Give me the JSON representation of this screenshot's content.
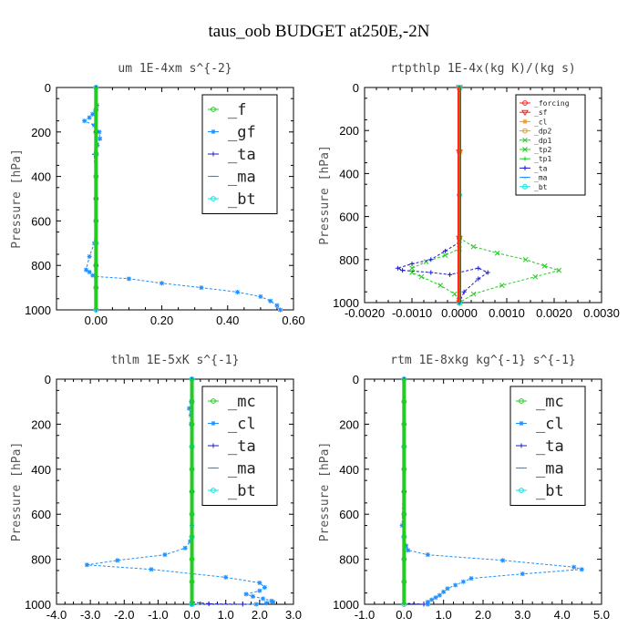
{
  "suptitle": "taus_oob  BUDGET at250E,-2N",
  "colors": {
    "green": "#22cc22",
    "blue": "#1e90ff",
    "navy": "#1a1ac8",
    "cyan": "#00e6e6",
    "red": "#ff1a1a",
    "orange": "#ff9900",
    "lightgreen": "#66dd66"
  },
  "chart_data": [
    {
      "type": "line",
      "title": "um  1E-4xm s^{-2}",
      "ylabel": "Pressure [hPa]",
      "xlim": [
        -0.12,
        0.6
      ],
      "ylim": [
        1000,
        0
      ],
      "xticks": [
        "0.00",
        "0.20",
        "0.40",
        "0.60"
      ],
      "xtick_values": [
        0.0,
        0.2,
        0.4,
        0.6
      ],
      "yticks": [
        "0",
        "200",
        "400",
        "600",
        "800",
        "1000"
      ],
      "legend_size": "large",
      "series": [
        {
          "name": "_f",
          "color": "green",
          "marker": "o",
          "x": [
            0,
            0,
            0,
            0,
            0,
            0,
            0,
            0,
            0,
            0,
            0
          ],
          "y": [
            0,
            100,
            200,
            300,
            400,
            500,
            600,
            700,
            800,
            900,
            1000
          ]
        },
        {
          "name": "_gf",
          "color": "blue",
          "marker": "*",
          "x": [
            0,
            0.003,
            -0.01,
            -0.02,
            -0.035,
            -0.005,
            0.01,
            0.012,
            0.004,
            0.002,
            0.0,
            0.0,
            0.0,
            -0.005,
            -0.02,
            -0.03,
            -0.02,
            -0.01,
            0.0,
            0.1,
            0.2,
            0.32,
            0.43,
            0.5,
            0.53,
            0.55,
            0.56
          ],
          "y": [
            0,
            80,
            120,
            135,
            150,
            170,
            200,
            230,
            260,
            300,
            400,
            500,
            600,
            700,
            760,
            820,
            830,
            845,
            850,
            860,
            880,
            900,
            920,
            940,
            960,
            980,
            1000
          ]
        },
        {
          "name": "_ta",
          "color": "navy",
          "marker": "+",
          "x": [
            0,
            0.0,
            -0.005,
            0.0,
            0.0,
            0.0
          ],
          "y": [
            0,
            200,
            300,
            500,
            800,
            1000
          ]
        },
        {
          "name": "_ma",
          "color": "blue",
          "marker": "-",
          "x": [
            0,
            0,
            0,
            0
          ],
          "y": [
            0,
            300,
            700,
            1000
          ]
        },
        {
          "name": "_bt",
          "color": "cyan",
          "marker": "o",
          "x": [
            0,
            0,
            0,
            0
          ],
          "y": [
            0,
            300,
            700,
            1000
          ]
        }
      ]
    },
    {
      "type": "line",
      "title": "rtpthlp  1E-4x(kg K)/(kg s)",
      "ylabel": "Pressure [hPa]",
      "xlim": [
        -0.002,
        0.003
      ],
      "ylim": [
        1000,
        0
      ],
      "xticks": [
        "-0.0020",
        "-0.0010",
        "0.0000",
        "0.0010",
        "0.0020",
        "0.0030"
      ],
      "xtick_values": [
        -0.002,
        -0.001,
        0.0,
        0.001,
        0.002,
        0.003
      ],
      "yticks": [
        "0",
        "200",
        "400",
        "600",
        "800",
        "1000"
      ],
      "legend_size": "small",
      "series": [
        {
          "name": "_forcing",
          "color": "red",
          "marker": "o",
          "x": [
            0,
            0,
            0,
            0
          ],
          "y": [
            0,
            300,
            700,
            1000
          ]
        },
        {
          "name": "_sf",
          "color": "red",
          "marker": "v",
          "x": [
            0,
            0,
            0,
            0
          ],
          "y": [
            0,
            300,
            700,
            1000
          ]
        },
        {
          "name": "_cl",
          "color": "orange",
          "marker": "*",
          "x": [
            0,
            0,
            0,
            0
          ],
          "y": [
            0,
            300,
            700,
            1000
          ]
        },
        {
          "name": "_dp2",
          "color": "orange",
          "marker": "o",
          "x": [
            0,
            0,
            0,
            0
          ],
          "y": [
            0,
            300,
            700,
            1000
          ]
        },
        {
          "name": "_dp1",
          "color": "green",
          "marker": "x",
          "x": [
            0,
            0,
            0.0003,
            0.0008,
            0.0014,
            0.0018,
            0.0021,
            0.0016,
            0.0009,
            0.0003,
            0.0
          ],
          "y": [
            0,
            700,
            740,
            770,
            800,
            830,
            850,
            880,
            920,
            960,
            1000
          ]
        },
        {
          "name": "_tp2",
          "color": "green",
          "marker": "x",
          "x": [
            0,
            0,
            -0.0003,
            -0.0007,
            -0.001,
            -0.001,
            -0.0008,
            -0.0004,
            -0.0001,
            0.0
          ],
          "y": [
            0,
            750,
            780,
            810,
            840,
            860,
            880,
            920,
            960,
            1000
          ]
        },
        {
          "name": "_tp1",
          "color": "green",
          "marker": "+",
          "x": [
            0,
            0,
            0.0
          ],
          "y": [
            0,
            500,
            1000
          ]
        },
        {
          "name": "_ta",
          "color": "navy",
          "marker": "+",
          "x": [
            0,
            0,
            0.0,
            -0.0003,
            -0.0006,
            -0.001,
            -0.0013,
            -0.0012,
            -0.0006,
            -0.0002,
            0.0004,
            0.0006,
            0.0004,
            0.0001,
            0.0
          ],
          "y": [
            0,
            700,
            720,
            760,
            800,
            820,
            840,
            850,
            860,
            870,
            840,
            860,
            890,
            950,
            1000
          ]
        },
        {
          "name": "_ma",
          "color": "blue",
          "marker": "-",
          "x": [
            0,
            0,
            0.0
          ],
          "y": [
            0,
            500,
            1000
          ]
        },
        {
          "name": "_bt",
          "color": "cyan",
          "marker": "o",
          "x": [
            0,
            0,
            0.0
          ],
          "y": [
            0,
            500,
            1000
          ]
        }
      ]
    },
    {
      "type": "line",
      "title": "thlm  1E-5xK s^{-1}",
      "ylabel": "Pressure [hPa]",
      "xlim": [
        -4.0,
        3.0
      ],
      "ylim": [
        1000,
        0
      ],
      "xticks": [
        "-4.0",
        "-3.0",
        "-2.0",
        "-1.0",
        "0.0",
        "1.0",
        "2.0",
        "3.0"
      ],
      "xtick_values": [
        -4.0,
        -3.0,
        -2.0,
        -1.0,
        0.0,
        1.0,
        2.0,
        3.0
      ],
      "yticks": [
        "0",
        "200",
        "400",
        "600",
        "800",
        "1000"
      ],
      "legend_size": "large",
      "series": [
        {
          "name": "_mc",
          "color": "green",
          "marker": "o",
          "x": [
            0,
            0,
            0,
            0,
            0,
            0,
            0,
            0,
            0,
            0,
            0
          ],
          "y": [
            0,
            100,
            200,
            300,
            400,
            500,
            600,
            700,
            800,
            900,
            1000
          ]
        },
        {
          "name": "_cl",
          "color": "blue",
          "marker": "*",
          "x": [
            0,
            -0.02,
            -0.08,
            -0.03,
            -0.02,
            0.0,
            0.0,
            0.0,
            -0.05,
            -0.2,
            -0.8,
            -2.2,
            -3.1,
            -1.2,
            1.0,
            2.0,
            2.15,
            2.0,
            1.6,
            1.8,
            2.1,
            2.35,
            2.4,
            2.2,
            1.9,
            0.0
          ],
          "y": [
            0,
            100,
            130,
            160,
            200,
            300,
            500,
            650,
            720,
            750,
            780,
            805,
            825,
            845,
            880,
            905,
            925,
            940,
            955,
            965,
            975,
            985,
            990,
            995,
            1000,
            1000
          ]
        },
        {
          "name": "_ta",
          "color": "navy",
          "marker": "+",
          "x": [
            0,
            0,
            0,
            0.5,
            1.5
          ],
          "y": [
            0,
            500,
            990,
            998,
            1000
          ]
        },
        {
          "name": "_ma",
          "color": "blue",
          "marker": "-",
          "x": [
            0,
            0,
            0,
            0
          ],
          "y": [
            0,
            300,
            700,
            1000
          ]
        },
        {
          "name": "_bt",
          "color": "cyan",
          "marker": "o",
          "x": [
            0,
            0,
            0,
            0
          ],
          "y": [
            0,
            300,
            700,
            1000
          ]
        }
      ]
    },
    {
      "type": "line",
      "title": "rtm  1E-8xkg kg^{-1} s^{-1}",
      "ylabel": "Pressure [hPa]",
      "xlim": [
        -1.0,
        5.0
      ],
      "ylim": [
        1000,
        0
      ],
      "xticks": [
        "-1.0",
        "0.0",
        "1.0",
        "2.0",
        "3.0",
        "4.0",
        "5.0"
      ],
      "xtick_values": [
        -1.0,
        0.0,
        1.0,
        2.0,
        3.0,
        4.0,
        5.0
      ],
      "yticks": [
        "0",
        "200",
        "400",
        "600",
        "800",
        "1000"
      ],
      "legend_size": "large",
      "series": [
        {
          "name": "_mc",
          "color": "green",
          "marker": "o",
          "x": [
            0,
            0,
            0,
            0,
            0,
            0,
            0,
            0,
            0,
            0,
            0
          ],
          "y": [
            0,
            100,
            200,
            300,
            400,
            500,
            600,
            700,
            800,
            900,
            1000
          ]
        },
        {
          "name": "_cl",
          "color": "blue",
          "marker": "*",
          "x": [
            0,
            0.0,
            -0.05,
            0.0,
            0.05,
            0.1,
            0.6,
            2.5,
            4.3,
            4.5,
            3.0,
            1.7,
            1.5,
            1.3,
            1.1,
            1.0,
            0.9,
            0.8,
            0.7,
            0.6,
            0.6
          ],
          "y": [
            0,
            300,
            650,
            700,
            740,
            760,
            780,
            805,
            835,
            845,
            865,
            885,
            900,
            915,
            930,
            945,
            960,
            970,
            980,
            990,
            1000
          ]
        },
        {
          "name": "_ta",
          "color": "navy",
          "marker": "+",
          "x": [
            0,
            0,
            0,
            0.5
          ],
          "y": [
            0,
            500,
            995,
            1000
          ]
        },
        {
          "name": "_ma",
          "color": "blue",
          "marker": "-",
          "x": [
            0,
            0,
            0,
            0
          ],
          "y": [
            0,
            300,
            700,
            1000
          ]
        },
        {
          "name": "_bt",
          "color": "cyan",
          "marker": "o",
          "x": [
            0,
            0,
            0,
            0
          ],
          "y": [
            0,
            300,
            700,
            1000
          ]
        }
      ]
    }
  ]
}
